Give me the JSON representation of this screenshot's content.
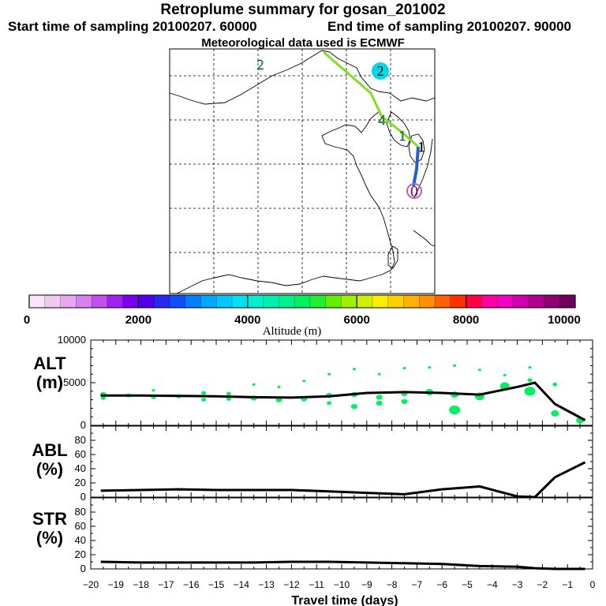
{
  "header": {
    "title": "Retroplume summary for gosan_201002",
    "start_line": "Start time of sampling 20100207. 60000",
    "end_line": "End time of sampling 20100207. 90000",
    "met_line": "Meteorological data used is ECMWF"
  },
  "colorbar": {
    "ticks": [
      "0",
      "2000",
      "4000",
      "6000",
      "8000",
      "10000"
    ],
    "label": "Altitude (m)",
    "colors": [
      "#f8e6f8",
      "#f0c8f0",
      "#e8a8f0",
      "#d880f0",
      "#c050f0",
      "#a020f0",
      "#7800f0",
      "#5000e8",
      "#2828f0",
      "#1050f8",
      "#0080ff",
      "#00a8ff",
      "#00c8ff",
      "#00e0f0",
      "#00f0d0",
      "#00f0b0",
      "#00f090",
      "#00f060",
      "#20f030",
      "#60f000",
      "#a0f000",
      "#d0f000",
      "#f8f000",
      "#ffd000",
      "#ffb000",
      "#ff9000",
      "#ff6000",
      "#ff3000",
      "#ff0040",
      "#ff00a0",
      "#f000c0",
      "#d000b0",
      "#b00090",
      "#900070",
      "#700060"
    ]
  },
  "map": {
    "labels": [
      {
        "text": "2",
        "color": "#00f060",
        "kind": "marker"
      },
      {
        "text": "2",
        "color": "#00d8e8",
        "kind": "marker"
      },
      {
        "text": "4",
        "color": "#20d060",
        "kind": "marker"
      },
      {
        "text": "1",
        "color": "#000000",
        "kind": "marker"
      },
      {
        "text": "1",
        "color": "#30c040",
        "kind": "marker"
      },
      {
        "text": "0",
        "color": "#800060",
        "kind": "marker"
      }
    ],
    "track_colors": {
      "northwest": "#80e020",
      "south": "#2060d0"
    }
  },
  "chart_data": [
    {
      "type": "line",
      "name": "ALT",
      "ylabel": "ALT\n(m)",
      "ylabel_lines": [
        "ALT",
        "(m)"
      ],
      "ylim": [
        0,
        10000
      ],
      "yticks": [
        "10000",
        "5000",
        "0"
      ],
      "x": [
        -19.6,
        -18,
        -16.5,
        -15,
        -13.5,
        -12,
        -10.5,
        -9,
        -7.5,
        -6,
        -4.5,
        -3,
        -2.3,
        -1.5,
        -0.3
      ],
      "y": [
        3500,
        3500,
        3450,
        3400,
        3300,
        3250,
        3400,
        3800,
        3900,
        3800,
        3600,
        4500,
        5000,
        2500,
        600
      ],
      "scatter": {
        "x": [
          -19.5,
          -19.5,
          -18.5,
          -17.5,
          -17.5,
          -16.5,
          -15.5,
          -15.5,
          -14.5,
          -14.5,
          -13.5,
          -13.5,
          -12.5,
          -12.5,
          -11.5,
          -11.5,
          -10.5,
          -10.5,
          -10.5,
          -9.5,
          -9.5,
          -9.5,
          -8.5,
          -8.5,
          -8.5,
          -7.5,
          -7.5,
          -7.5,
          -6.5,
          -6.5,
          -5.5,
          -5.5,
          -5.5,
          -4.5,
          -4.5,
          -3.5,
          -3.5,
          -2.5,
          -2.5,
          -2.5,
          -1.5,
          -1.5,
          -0.5
        ],
        "y": [
          3600,
          3200,
          3500,
          4100,
          3300,
          3400,
          3800,
          3000,
          3700,
          3100,
          4800,
          3200,
          4500,
          3000,
          5200,
          3100,
          6000,
          3500,
          2600,
          6600,
          3600,
          2200,
          6000,
          3300,
          2600,
          6700,
          3700,
          2800,
          6800,
          3900,
          7000,
          3600,
          1800,
          6500,
          3400,
          5900,
          4600,
          6800,
          5300,
          4000,
          4800,
          1400,
          600
        ],
        "size": [
          4,
          3,
          3,
          2,
          3,
          3,
          3,
          3,
          3,
          3,
          2,
          4,
          2,
          4,
          2,
          4,
          2,
          4,
          3,
          2,
          4,
          4,
          2,
          4,
          4,
          2,
          4,
          4,
          2,
          5,
          2,
          5,
          7,
          2,
          6,
          2,
          6,
          2,
          3,
          7,
          3,
          5,
          5
        ],
        "color": [
          "#00f060",
          "#00f060",
          "#00f060",
          "#00f060",
          "#00f060",
          "#00f060",
          "#00f060",
          "#00f060",
          "#00f060",
          "#00f060",
          "#00f060",
          "#00f060",
          "#00f060",
          "#00f060",
          "#00f060",
          "#00f060",
          "#00f060",
          "#00f060",
          "#00f060",
          "#00f060",
          "#00f060",
          "#00f060",
          "#00f060",
          "#00f060",
          "#00f060",
          "#00f060",
          "#00f060",
          "#00f060",
          "#00f060",
          "#00f060",
          "#00f060",
          "#00f060",
          "#00f060",
          "#00f060",
          "#00f060",
          "#00f060",
          "#00f060",
          "#00f060",
          "#00f060",
          "#00f060",
          "#00f060",
          "#00f060",
          "#00f060"
        ]
      }
    },
    {
      "type": "line",
      "name": "ABL",
      "ylabel_lines": [
        "ABL",
        "(%)"
      ],
      "ylim": [
        0,
        100
      ],
      "yticks": [
        "80",
        "60",
        "40",
        "20",
        "0"
      ],
      "x": [
        -19.6,
        -18,
        -16.5,
        -15,
        -13.5,
        -12,
        -10.5,
        -9,
        -7.5,
        -6,
        -4.5,
        -3,
        -2.3,
        -1.5,
        -0.3
      ],
      "y": [
        9,
        10,
        11,
        10,
        10,
        10,
        8,
        6,
        4,
        11,
        15,
        1,
        0,
        28,
        49
      ]
    },
    {
      "type": "line",
      "name": "STR",
      "ylabel_lines": [
        "STR",
        "(%)"
      ],
      "ylim": [
        0,
        100
      ],
      "yticks": [
        "80",
        "60",
        "40",
        "20",
        "0"
      ],
      "x": [
        -19.6,
        -18,
        -16.5,
        -15,
        -13.5,
        -12,
        -10.5,
        -9,
        -7.5,
        -6,
        -4.5,
        -3,
        -2.3,
        -1.5,
        -0.3
      ],
      "y": [
        10,
        9,
        9,
        9,
        9,
        10,
        10,
        9,
        8,
        7,
        4,
        3,
        1,
        0,
        0
      ]
    }
  ],
  "xaxis": {
    "label": "Travel time (days)",
    "ticks": [
      "−20",
      "−19",
      "−18",
      "−17",
      "−16",
      "−15",
      "−14",
      "−13",
      "−12",
      "−11",
      "−10",
      "−9",
      "−8",
      "−7",
      "−6",
      "−5",
      "−4",
      "−3",
      "−2",
      "−1",
      "0"
    ],
    "tick_values": [
      -20,
      -19,
      -18,
      -17,
      -16,
      -15,
      -14,
      -13,
      -12,
      -11,
      -10,
      -9,
      -8,
      -7,
      -6,
      -5,
      -4,
      -3,
      -2,
      -1,
      0
    ]
  }
}
